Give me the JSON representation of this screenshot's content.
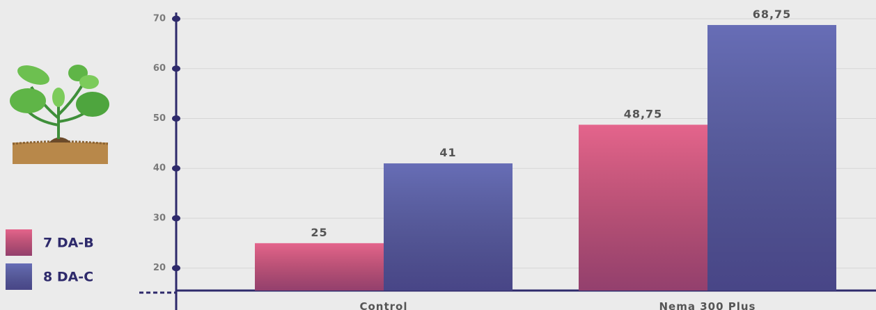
{
  "chart_data": {
    "type": "bar",
    "categories": [
      "Control",
      "Nema 300 Plus"
    ],
    "series": [
      {
        "name": "7 DA-B",
        "color": "#e4648c",
        "values": [
          25,
          48.75
        ],
        "value_labels": [
          "25",
          "48,75"
        ]
      },
      {
        "name": "8 DA-C",
        "color": "#676db6",
        "values": [
          41,
          68.75
        ],
        "value_labels": [
          "41",
          "68,75"
        ]
      }
    ],
    "ylim": [
      15.5,
      70
    ],
    "yticks": [
      20,
      30,
      40,
      50,
      60,
      70
    ],
    "grid": true
  }
}
